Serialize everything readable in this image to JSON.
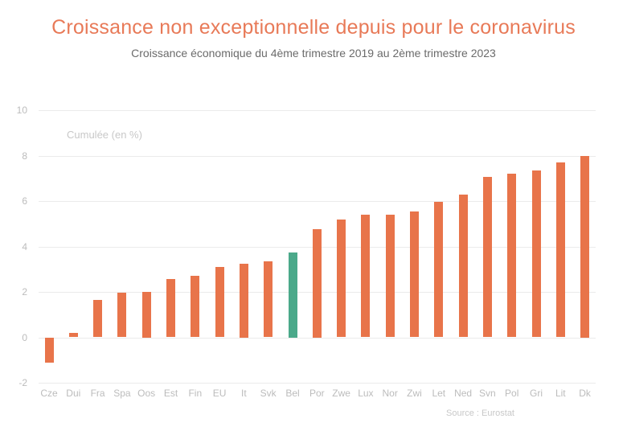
{
  "header": {
    "title": "Croissance non exceptionnelle depuis pour le coronavirus",
    "subtitle": "Croissance économique du 4ème trimestre 2019 au 2ème trimestre 2023"
  },
  "footer": {
    "source": "Source : Eurostat"
  },
  "colors": {
    "title": "#E87A58",
    "subtitle": "#6B6B6B",
    "bar_default": "#E8744A",
    "bar_highlight": "#4BA98A",
    "axis_text": "#BCBCBC",
    "annotation": "#C8C8C8",
    "gridline": "#EBEBEB"
  },
  "chart_data": {
    "type": "bar",
    "title": "Croissance non exceptionnelle depuis pour le coronavirus",
    "subtitle": "Croissance économique du 4ème trimestre 2019 au 2ème trimestre 2023",
    "ylabel_annotation": "Cumulée (en %)",
    "xlabel": "",
    "ylabel": "",
    "ylim": [
      -2,
      10
    ],
    "yticks": [
      -2,
      0,
      2,
      4,
      6,
      8,
      10
    ],
    "grid": "horizontal",
    "legend": "none",
    "categories": [
      "Cze",
      "Dui",
      "Fra",
      "Spa",
      "Oos",
      "Est",
      "Fin",
      "EU",
      "It",
      "Svk",
      "Bel",
      "Por",
      "Zwe",
      "Lux",
      "Nor",
      "Zwi",
      "Let",
      "Ned",
      "Svn",
      "Pol",
      "Gri",
      "Lit",
      "Dk"
    ],
    "values": [
      -1.1,
      0.2,
      1.65,
      1.95,
      2.0,
      2.55,
      2.7,
      3.1,
      3.25,
      3.35,
      3.75,
      4.75,
      5.2,
      5.4,
      5.4,
      5.55,
      5.95,
      6.3,
      7.05,
      7.2,
      7.35,
      7.7,
      8.0
    ],
    "highlight_category": "Bel",
    "source": "Source : Eurostat"
  }
}
